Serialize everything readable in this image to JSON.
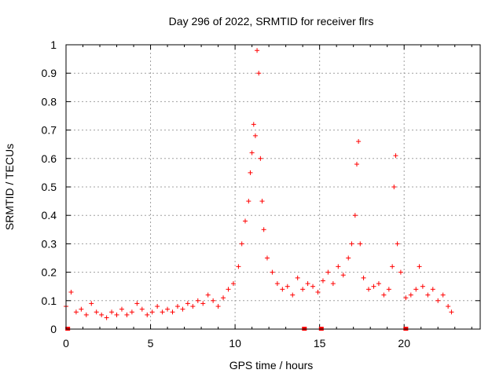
{
  "chart_data": {
    "type": "scatter",
    "title": "Day 296 of 2022, SRMTID for receiver flrs",
    "xlabel": "GPS time / hours",
    "ylabel": "SRMTID / TECUs",
    "xlim": [
      0,
      24.5
    ],
    "ylim": [
      0,
      1
    ],
    "xticks": [
      "0",
      "5",
      "10",
      "15",
      "20"
    ],
    "yticks": [
      "0",
      "0.1",
      "0.2",
      "0.3",
      "0.4",
      "0.5",
      "0.6",
      "0.7",
      "0.8",
      "0.9",
      "1"
    ],
    "grid": true,
    "marker": "plus",
    "color": "#ff0000",
    "series": [
      {
        "name": "SRMTID",
        "x": [
          0.0,
          0.3,
          0.6,
          0.9,
          1.2,
          1.5,
          1.8,
          2.1,
          2.4,
          2.7,
          3.0,
          3.3,
          3.6,
          3.9,
          4.2,
          4.5,
          4.8,
          5.1,
          5.4,
          5.7,
          6.0,
          6.3,
          6.6,
          6.9,
          7.2,
          7.5,
          7.8,
          8.1,
          8.4,
          8.7,
          9.0,
          9.3,
          9.6,
          9.9,
          10.2,
          10.4,
          10.6,
          10.8,
          10.9,
          11.0,
          11.1,
          11.2,
          11.3,
          11.4,
          11.5,
          11.6,
          11.7,
          11.9,
          12.2,
          12.5,
          12.8,
          13.1,
          13.4,
          13.7,
          14.0,
          14.3,
          14.6,
          14.9,
          15.2,
          15.5,
          15.8,
          16.1,
          16.4,
          16.7,
          16.9,
          17.1,
          17.2,
          17.3,
          17.4,
          17.6,
          17.9,
          18.2,
          18.5,
          18.8,
          19.1,
          19.3,
          19.4,
          19.5,
          19.6,
          19.8,
          20.1,
          20.4,
          20.7,
          20.9,
          21.1,
          21.4,
          21.7,
          22.0,
          22.3,
          22.6,
          22.8
        ],
        "y": [
          0.08,
          0.13,
          0.06,
          0.07,
          0.05,
          0.09,
          0.06,
          0.05,
          0.04,
          0.06,
          0.05,
          0.07,
          0.05,
          0.06,
          0.09,
          0.07,
          0.05,
          0.06,
          0.08,
          0.06,
          0.07,
          0.06,
          0.08,
          0.07,
          0.09,
          0.08,
          0.1,
          0.09,
          0.12,
          0.1,
          0.08,
          0.11,
          0.14,
          0.16,
          0.22,
          0.3,
          0.38,
          0.45,
          0.55,
          0.62,
          0.72,
          0.68,
          0.98,
          0.9,
          0.6,
          0.45,
          0.35,
          0.25,
          0.2,
          0.16,
          0.14,
          0.15,
          0.12,
          0.18,
          0.14,
          0.16,
          0.15,
          0.13,
          0.17,
          0.2,
          0.16,
          0.22,
          0.19,
          0.25,
          0.3,
          0.4,
          0.58,
          0.66,
          0.3,
          0.18,
          0.14,
          0.15,
          0.16,
          0.12,
          0.14,
          0.22,
          0.5,
          0.61,
          0.3,
          0.2,
          0.11,
          0.12,
          0.14,
          0.22,
          0.15,
          0.12,
          0.14,
          0.1,
          0.12,
          0.08,
          0.06
        ],
        "zero_markers": [
          0.1,
          14.1,
          15.1,
          20.1
        ]
      }
    ]
  }
}
